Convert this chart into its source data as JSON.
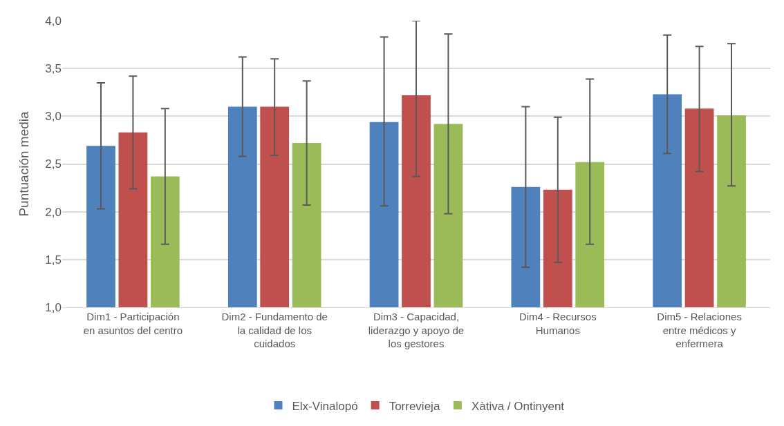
{
  "chart_data": {
    "type": "bar",
    "ylabel": "Puntuación media",
    "categories": [
      "Dim1 - Participación en asuntos del centro",
      "Dim2 - Fundamento de la calidad de los cuidados",
      "Dim3 - Capacidad, liderazgo y apoyo de los gestores",
      "Dim4 - Recursos Humanos",
      "Dim5 - Relaciones entre médicos y enfermera"
    ],
    "series": [
      {
        "name": "Elx-Vinalopó",
        "color": "#4f81bd",
        "values": [
          2.69,
          3.1,
          2.94,
          2.26,
          3.23
        ],
        "errors": [
          [
            2.03,
            3.35
          ],
          [
            2.58,
            3.62
          ],
          [
            2.06,
            3.83
          ],
          [
            1.42,
            3.1
          ],
          [
            2.61,
            3.85
          ]
        ]
      },
      {
        "name": "Torrevieja",
        "color": "#c0504d",
        "values": [
          2.83,
          3.1,
          3.22,
          2.23,
          3.08
        ],
        "errors": [
          [
            2.24,
            3.42
          ],
          [
            2.59,
            3.6
          ],
          [
            2.37,
            4.0
          ],
          [
            1.47,
            2.99
          ],
          [
            2.42,
            3.73
          ]
        ]
      },
      {
        "name": "Xàtiva / Ontinyent",
        "color": "#9bbb59",
        "values": [
          2.37,
          2.72,
          2.92,
          2.52,
          3.01
        ],
        "errors": [
          [
            1.66,
            3.08
          ],
          [
            2.07,
            3.37
          ],
          [
            1.98,
            3.86
          ],
          [
            1.66,
            3.39
          ],
          [
            2.27,
            3.76
          ]
        ]
      }
    ],
    "ylim": [
      1.0,
      4.0
    ],
    "yticks": [
      {
        "value": 1.0,
        "label": "1,0"
      },
      {
        "value": 1.5,
        "label": "1,5"
      },
      {
        "value": 2.0,
        "label": "2,0"
      },
      {
        "value": 2.5,
        "label": "2,5"
      },
      {
        "value": 3.0,
        "label": "3,0"
      },
      {
        "value": 3.5,
        "label": "3,5"
      },
      {
        "value": 4.0,
        "label": "4,0"
      }
    ],
    "grid": "y",
    "legend": "bottom"
  }
}
